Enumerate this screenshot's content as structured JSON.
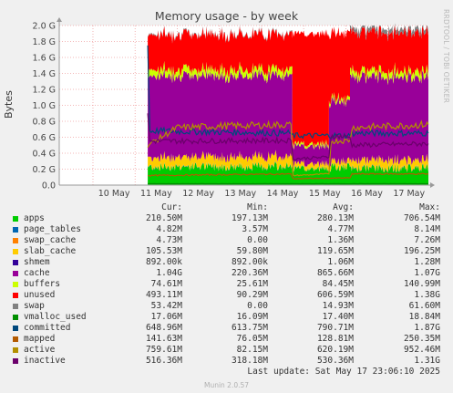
{
  "title": "Memory usage - by week",
  "ylabel": "Bytes",
  "watermark": "RRDTOOL / TOBI OETIKER",
  "legend_headers": {
    "cur": "Cur:",
    "min": "Min:",
    "avg": "Avg:",
    "max": "Max:"
  },
  "legend": [
    {
      "name": "apps",
      "color": "#00cc00",
      "cur": "210.50M",
      "min": "197.13M",
      "avg": "280.13M",
      "max": "706.54M"
    },
    {
      "name": "page_tables",
      "color": "#0066b3",
      "cur": "4.82M",
      "min": "3.57M",
      "avg": "4.77M",
      "max": "8.14M"
    },
    {
      "name": "swap_cache",
      "color": "#ff8000",
      "cur": "4.73M",
      "min": "0.00",
      "avg": "1.36M",
      "max": "7.26M"
    },
    {
      "name": "slab_cache",
      "color": "#ffcc00",
      "cur": "105.53M",
      "min": "59.80M",
      "avg": "119.65M",
      "max": "196.25M"
    },
    {
      "name": "shmem",
      "color": "#330099",
      "cur": "892.00k",
      "min": "892.00k",
      "avg": "1.06M",
      "max": "1.28M"
    },
    {
      "name": "cache",
      "color": "#990099",
      "cur": "1.04G",
      "min": "220.36M",
      "avg": "865.66M",
      "max": "1.07G"
    },
    {
      "name": "buffers",
      "color": "#ccff00",
      "cur": "74.61M",
      "min": "25.61M",
      "avg": "84.45M",
      "max": "140.99M"
    },
    {
      "name": "unused",
      "color": "#ff0000",
      "cur": "493.11M",
      "min": "90.29M",
      "avg": "606.59M",
      "max": "1.38G"
    },
    {
      "name": "swap",
      "color": "#808080",
      "cur": "53.42M",
      "min": "0.00",
      "avg": "14.93M",
      "max": "61.60M"
    },
    {
      "name": "vmalloc_used",
      "color": "#008f00",
      "cur": "17.06M",
      "min": "16.09M",
      "avg": "17.40M",
      "max": "18.84M"
    },
    {
      "name": "committed",
      "color": "#00487d",
      "cur": "648.96M",
      "min": "613.75M",
      "avg": "790.71M",
      "max": "1.87G"
    },
    {
      "name": "mapped",
      "color": "#b35a00",
      "cur": "141.63M",
      "min": "76.05M",
      "avg": "128.81M",
      "max": "250.35M"
    },
    {
      "name": "active",
      "color": "#b38f00",
      "cur": "759.61M",
      "min": "82.15M",
      "avg": "620.19M",
      "max": "952.46M"
    },
    {
      "name": "inactive",
      "color": "#6b006b",
      "cur": "516.36M",
      "min": "318.18M",
      "avg": "530.36M",
      "max": "1.31G"
    }
  ],
  "last_update": "Last update: Sat May 17 23:06:10 2025",
  "footer": "Munin 2.0.57",
  "chart_data": {
    "type": "area",
    "title": "Memory usage - by week",
    "ylabel": "Bytes",
    "y_ticks": [
      "0.0",
      "0.2 G",
      "0.4 G",
      "0.6 G",
      "0.8 G",
      "1.0 G",
      "1.2 G",
      "1.4 G",
      "1.6 G",
      "1.8 G",
      "2.0 G"
    ],
    "x_ticks": [
      "10 May",
      "11 May",
      "12 May",
      "13 May",
      "14 May",
      "15 May",
      "16 May",
      "17 May"
    ],
    "ylim": [
      0,
      2.0
    ],
    "y_unit": "G",
    "x_range_days": [
      9.2,
      17.96
    ],
    "data_start_day": 11.3,
    "grid": true,
    "series_order_bottom_to_top": [
      "apps",
      "page_tables",
      "swap_cache",
      "slab_cache",
      "cache",
      "buffers",
      "unused",
      "swap"
    ],
    "segments": [
      {
        "from": 11.3,
        "to": 14.73,
        "apps": 0.23,
        "page_tables": 0.005,
        "swap_cache": 0.002,
        "slab_cache": 0.12,
        "cache": 1.02,
        "buffers": 0.08,
        "unused": 0.44,
        "swap": 0.01
      },
      {
        "from": 14.73,
        "to": 15.6,
        "apps": 0.2,
        "page_tables": 0.004,
        "swap_cache": 0.0,
        "slab_cache": 0.06,
        "cache": 0.22,
        "buffers": 0.03,
        "unused": 1.38,
        "swap": 0.0
      },
      {
        "from": 15.6,
        "to": 16.1,
        "apps": 0.22,
        "page_tables": 0.004,
        "swap_cache": 0.0,
        "slab_cache": 0.07,
        "cache": 0.75,
        "buffers": 0.04,
        "unused": 0.82,
        "swap": 0.0
      },
      {
        "from": 16.1,
        "to": 17.96,
        "apps": 0.21,
        "page_tables": 0.005,
        "swap_cache": 0.005,
        "slab_cache": 0.1,
        "cache": 1.04,
        "buffers": 0.075,
        "unused": 0.49,
        "swap": 0.053
      }
    ],
    "lines": {
      "committed": [
        [
          11.3,
          1.75
        ],
        [
          11.35,
          0.68
        ],
        [
          14.7,
          0.65
        ],
        [
          14.75,
          0.62
        ],
        [
          16.1,
          0.62
        ],
        [
          16.15,
          0.65
        ],
        [
          17.96,
          0.65
        ]
      ],
      "active": [
        [
          11.3,
          0.5
        ],
        [
          12.0,
          0.72
        ],
        [
          13.0,
          0.74
        ],
        [
          14.0,
          0.75
        ],
        [
          14.7,
          0.76
        ],
        [
          14.75,
          0.12
        ],
        [
          15.6,
          0.14
        ],
        [
          15.65,
          0.55
        ],
        [
          16.1,
          0.56
        ],
        [
          16.15,
          0.72
        ],
        [
          17.96,
          0.76
        ]
      ],
      "inactive": [
        [
          11.3,
          0.9
        ],
        [
          11.35,
          0.55
        ],
        [
          14.7,
          0.56
        ],
        [
          14.75,
          0.33
        ],
        [
          15.6,
          0.35
        ],
        [
          15.65,
          0.62
        ],
        [
          16.1,
          0.6
        ],
        [
          16.15,
          0.5
        ],
        [
          17.96,
          0.52
        ]
      ],
      "mapped": [
        [
          11.3,
          0.12
        ],
        [
          14.7,
          0.14
        ],
        [
          14.75,
          0.08
        ],
        [
          16.1,
          0.09
        ],
        [
          16.15,
          0.14
        ],
        [
          17.96,
          0.14
        ]
      ],
      "vmalloc_used": [
        [
          11.3,
          0.017
        ],
        [
          17.96,
          0.017
        ]
      ]
    }
  }
}
